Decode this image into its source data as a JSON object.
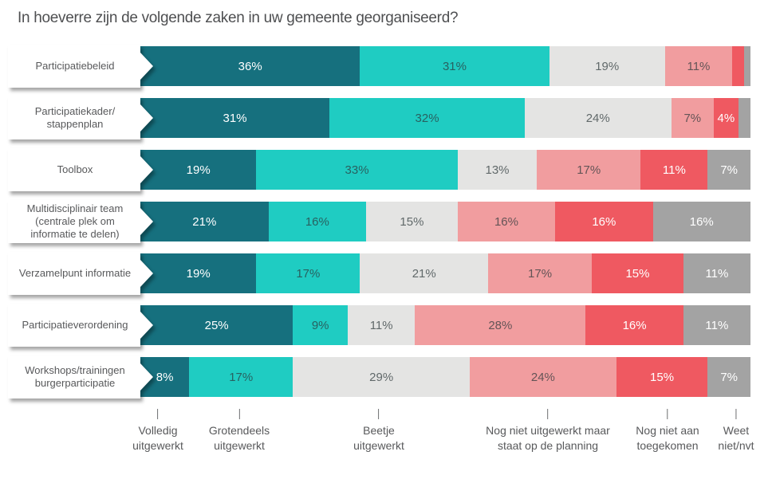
{
  "title": "In hoeverre zijn de volgende zaken in uw gemeente georganiseerd?",
  "segment_colors": [
    "#16707e",
    "#1fccc2",
    "#e4e4e3",
    "#f19d9f",
    "#ef5961",
    "#a3a3a3"
  ],
  "text_colors": {
    "on_dark": "#ffffff",
    "on_light": "rgba(45,55,58,0.72)"
  },
  "rows": [
    {
      "label": "Participatiebeleid",
      "values": [
        36,
        31,
        19,
        11,
        2,
        1
      ]
    },
    {
      "label": "Participatiekader/\nstappenplan",
      "values": [
        31,
        32,
        24,
        7,
        4,
        2
      ]
    },
    {
      "label": "Toolbox",
      "values": [
        19,
        33,
        13,
        17,
        11,
        7
      ]
    },
    {
      "label": "Multidisciplinair team\n(centrale plek om\ninformatie te delen)",
      "values": [
        21,
        16,
        15,
        16,
        16,
        16
      ]
    },
    {
      "label": "Verzamelpunt informatie",
      "values": [
        19,
        17,
        21,
        17,
        15,
        11
      ]
    },
    {
      "label": "Participatieverordening",
      "values": [
        25,
        9,
        11,
        28,
        16,
        11
      ]
    },
    {
      "label": "Workshops/trainingen\nburgerparticipatie",
      "values": [
        8,
        17,
        29,
        24,
        15,
        7
      ]
    }
  ],
  "legend": [
    {
      "label": "Volledig\nuitgewerkt"
    },
    {
      "label": "Grotendeels\nuitgewerkt"
    },
    {
      "label": "Beetje\nuitgewerkt"
    },
    {
      "label": "Nog niet uitgewerkt maar\nstaat op de planning"
    },
    {
      "label": "Nog niet aan\ntoegekomen"
    },
    {
      "label": "Weet\nniet/nvt"
    }
  ],
  "chart_data": {
    "type": "bar",
    "stacked": true,
    "orientation": "horizontal",
    "unit": "%",
    "xlim": [
      0,
      100
    ],
    "grid": false,
    "legend_position": "bottom",
    "title": "In hoeverre zijn de volgende zaken in uw gemeente georganiseerd?",
    "categories": [
      "Participatiebeleid",
      "Participatiekader/stappenplan",
      "Toolbox",
      "Multidisciplinair team (centrale plek om informatie te delen)",
      "Verzamelpunt informatie",
      "Participatieverordening",
      "Workshops/trainingen burgerparticipatie"
    ],
    "series": [
      {
        "name": "Volledig uitgewerkt",
        "color": "#16707e",
        "values": [
          36,
          31,
          19,
          21,
          19,
          25,
          8
        ]
      },
      {
        "name": "Grotendeels uitgewerkt",
        "color": "#1fccc2",
        "values": [
          31,
          32,
          33,
          16,
          17,
          9,
          17
        ]
      },
      {
        "name": "Beetje uitgewerkt",
        "color": "#e4e4e3",
        "values": [
          19,
          24,
          13,
          15,
          21,
          11,
          29
        ]
      },
      {
        "name": "Nog niet uitgewerkt maar staat op de planning",
        "color": "#f19d9f",
        "values": [
          11,
          7,
          17,
          16,
          17,
          28,
          24
        ]
      },
      {
        "name": "Nog niet aan toegekomen",
        "color": "#ef5961",
        "values": [
          2,
          4,
          11,
          16,
          15,
          16,
          15
        ]
      },
      {
        "name": "Weet niet/nvt",
        "color": "#a3a3a3",
        "values": [
          1,
          2,
          7,
          16,
          11,
          11,
          7
        ]
      }
    ],
    "note": "Segments below 4% carry no percentage label in the chart; those values (2%, 1%, 2%) are estimated from segment widths."
  }
}
